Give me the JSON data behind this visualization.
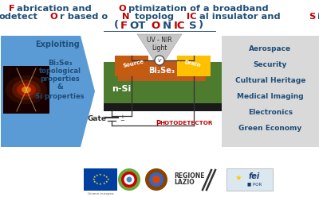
{
  "bg_color": "#ffffff",
  "title_color_main": "#1f4e79",
  "title_color_accent": "#c00000",
  "left_box_color": "#5b9bd5",
  "right_box_color": "#d9d9d9",
  "device_green": "#4e7c2f",
  "device_orange_src": "#c55a11",
  "device_yellow_drn": "#ffc000",
  "device_black": "#1a1a1a",
  "right_lines": [
    "Aerospace",
    "Security",
    "Cultural Heritage",
    "Medical Imaging",
    "Electronics",
    "Green Economy"
  ],
  "wire_color": "#333333",
  "photodetector_color": "#c00000",
  "gate_text": "Gate",
  "photodetector_text": "Photodetector",
  "nsi_text": "n-Si",
  "bi2se3_text": "Bi₂Se₃",
  "source_text": "Source",
  "drain_text": "Drain",
  "uvnir_text": "UV - NIR\nLight"
}
